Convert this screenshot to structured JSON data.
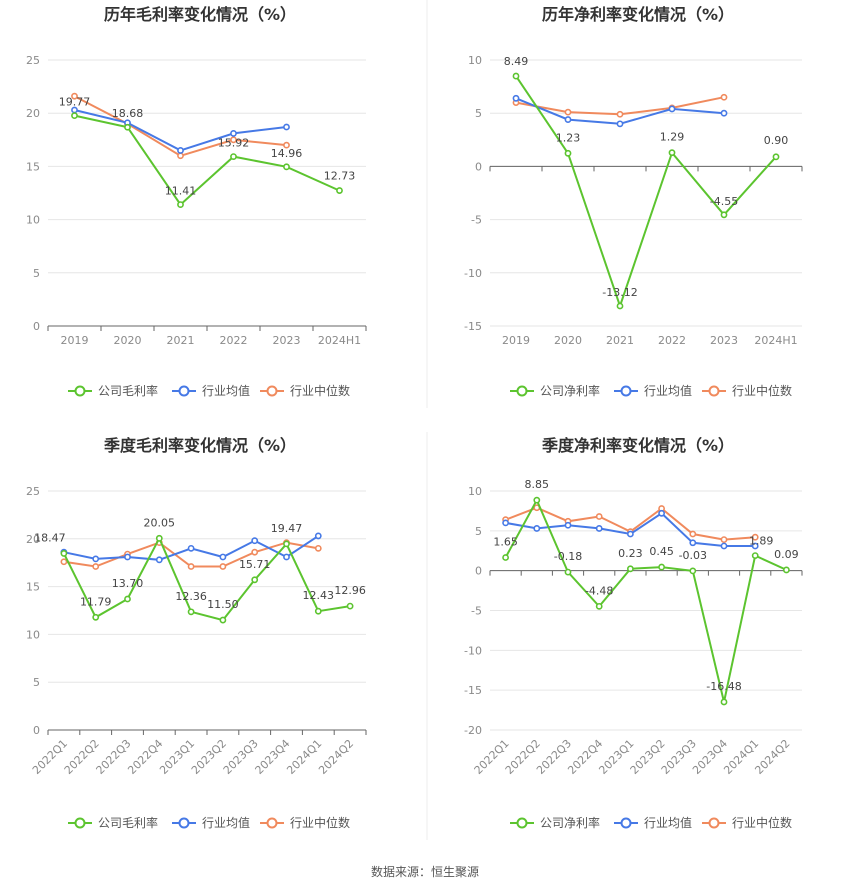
{
  "source": "数据来源：恒生聚源",
  "colors": {
    "company": "#5cc42f",
    "avg": "#4679e6",
    "median": "#f08a5d",
    "grid": "#e6e6e6",
    "axis": "#666666"
  },
  "legend_common": {
    "avg": "行业均值",
    "median": "行业中位数"
  },
  "chart_data": [
    {
      "type": "line",
      "title": "历年毛利率变化情况（%）",
      "categories": [
        "2019",
        "2020",
        "2021",
        "2022",
        "2023",
        "2024H1"
      ],
      "ylim": [
        0,
        25
      ],
      "yticks": [
        0,
        5,
        10,
        15,
        20,
        25
      ],
      "legend_company": "公司毛利率",
      "series": [
        {
          "key": "company",
          "name": "公司毛利率",
          "values": [
            19.77,
            18.68,
            11.41,
            15.92,
            14.96,
            12.73
          ],
          "labels": [
            "19.77",
            "18.68",
            "11.41",
            "15.92",
            "14.96",
            "12.73"
          ]
        },
        {
          "key": "avg",
          "name": "行业均值",
          "values": [
            20.3,
            19.1,
            16.5,
            18.1,
            18.7,
            null
          ]
        },
        {
          "key": "median",
          "name": "行业中位数",
          "values": [
            21.6,
            19.0,
            16.0,
            17.5,
            17.0,
            null
          ]
        }
      ]
    },
    {
      "type": "line",
      "title": "历年净利率变化情况（%）",
      "categories": [
        "2019",
        "2020",
        "2021",
        "2022",
        "2023",
        "2024H1"
      ],
      "ylim": [
        -15,
        10
      ],
      "yticks": [
        -15,
        -10,
        -5,
        0,
        5,
        10
      ],
      "legend_company": "公司净利率",
      "series": [
        {
          "key": "company",
          "name": "公司净利率",
          "values": [
            8.49,
            1.23,
            -13.12,
            1.29,
            -4.55,
            0.9
          ],
          "labels": [
            "8.49",
            "1.23",
            "-13.12",
            "1.29",
            "-4.55",
            "0.90"
          ]
        },
        {
          "key": "avg",
          "name": "行业均值",
          "values": [
            6.4,
            4.4,
            4.0,
            5.4,
            5.0,
            null
          ]
        },
        {
          "key": "median",
          "name": "行业中位数",
          "values": [
            6.0,
            5.1,
            4.9,
            5.5,
            6.5,
            null
          ]
        }
      ]
    },
    {
      "type": "line",
      "title": "季度毛利率变化情况（%）",
      "categories": [
        "2022Q1",
        "2022Q2",
        "2022Q3",
        "2022Q4",
        "2023Q1",
        "2023Q2",
        "2023Q3",
        "2023Q4",
        "2024Q1",
        "2024Q2"
      ],
      "ylim": [
        0,
        25
      ],
      "yticks": [
        0,
        5,
        10,
        15,
        20,
        25
      ],
      "legend_company": "公司毛利率",
      "series": [
        {
          "key": "company",
          "name": "公司毛利率",
          "values": [
            18.47,
            11.79,
            13.7,
            20.05,
            12.36,
            11.5,
            15.71,
            19.47,
            12.43,
            12.96
          ],
          "labels": [
            "18.47",
            "11.79",
            "13.70",
            "20.05",
            "12.36",
            "11.50",
            "15.71",
            "19.47",
            "12.43",
            "12.96"
          ]
        },
        {
          "key": "avg",
          "name": "行业均值",
          "values": [
            18.6,
            17.9,
            18.1,
            17.8,
            19.0,
            18.1,
            19.8,
            18.1,
            20.3,
            null
          ]
        },
        {
          "key": "median",
          "name": "行业中位数",
          "values": [
            17.6,
            17.1,
            18.4,
            19.6,
            17.1,
            17.1,
            18.6,
            19.6,
            19.0,
            null
          ]
        }
      ]
    },
    {
      "type": "line",
      "title": "季度净利率变化情况（%）",
      "categories": [
        "2022Q1",
        "2022Q2",
        "2022Q3",
        "2022Q4",
        "2023Q1",
        "2023Q2",
        "2023Q3",
        "2023Q4",
        "2024Q1",
        "2024Q2"
      ],
      "ylim": [
        -20,
        10
      ],
      "yticks": [
        -20,
        -15,
        -10,
        -5,
        0,
        5,
        10
      ],
      "legend_company": "公司净利率",
      "series": [
        {
          "key": "company",
          "name": "公司净利率",
          "values": [
            1.65,
            8.85,
            -0.18,
            -4.48,
            0.23,
            0.45,
            -0.03,
            -16.48,
            1.89,
            0.09
          ],
          "labels": [
            "1.65",
            "8.85",
            "-0.18",
            "-4.48",
            "0.23",
            "0.45",
            "-0.03",
            "-16.48",
            "1.89",
            "0.09"
          ]
        },
        {
          "key": "avg",
          "name": "行业均值",
          "values": [
            6.0,
            5.3,
            5.7,
            5.3,
            4.6,
            7.2,
            3.5,
            3.1,
            3.1,
            null
          ]
        },
        {
          "key": "median",
          "name": "行业中位数",
          "values": [
            6.4,
            7.9,
            6.2,
            6.8,
            4.9,
            7.8,
            4.6,
            3.9,
            4.2,
            null
          ]
        }
      ]
    }
  ]
}
